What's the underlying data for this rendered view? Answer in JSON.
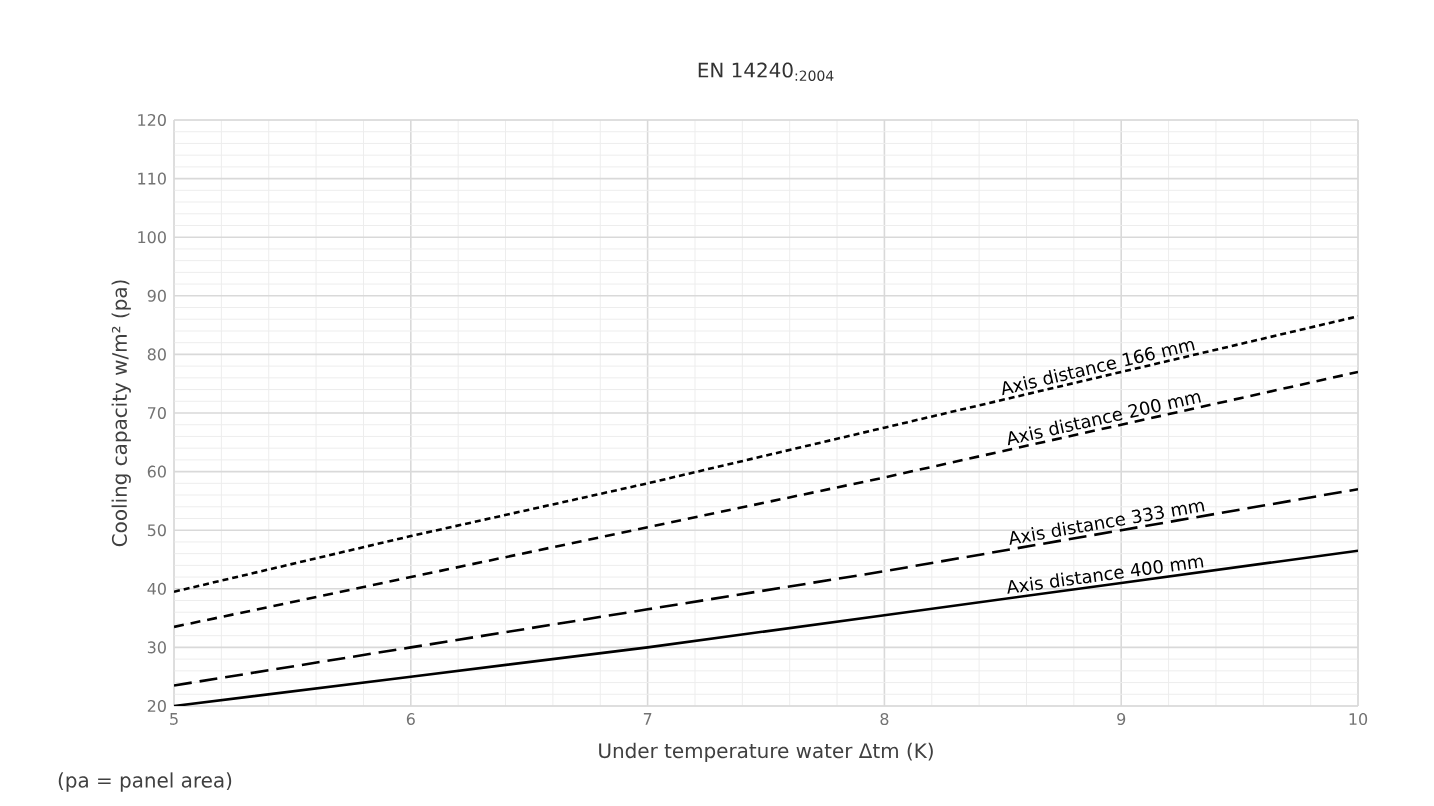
{
  "chart_data": {
    "type": "line",
    "title": "EN 14240$_{:2004}$",
    "xlabel": "Under temperature water Δtm (K)",
    "ylabel": "Cooling capacity w/m² (pa)",
    "annotations": [
      "(pa = panel area)"
    ],
    "x": [
      5,
      6,
      7,
      8,
      9,
      10
    ],
    "series": [
      {
        "name": "Axis distance 166 mm",
        "color": "#000000",
        "line_style": "dotted",
        "values": [
          39.5,
          49,
          58,
          67.5,
          77,
          86.5
        ]
      },
      {
        "name": "Axis distance 200 mm",
        "color": "#000000",
        "line_style": "dashed",
        "values": [
          33.5,
          42,
          50.5,
          59,
          68,
          77
        ]
      },
      {
        "name": "Axis distance 333 mm",
        "color": "#000000",
        "line_style": "dashed",
        "values": [
          23.5,
          30,
          36.5,
          43,
          50,
          57
        ]
      },
      {
        "name": "Axis distance 400 mm",
        "color": "#000000",
        "line_style": "solid",
        "values": [
          20,
          25,
          30,
          35.5,
          41,
          46.5
        ]
      }
    ],
    "xlim": [
      5,
      10
    ],
    "xticks": [
      5,
      6,
      7,
      8,
      9,
      10
    ],
    "ylim": [
      20,
      120
    ],
    "yticks": [
      20,
      30,
      40,
      50,
      60,
      70,
      80,
      90,
      100,
      110,
      120
    ],
    "grid": true,
    "marker": "none"
  }
}
